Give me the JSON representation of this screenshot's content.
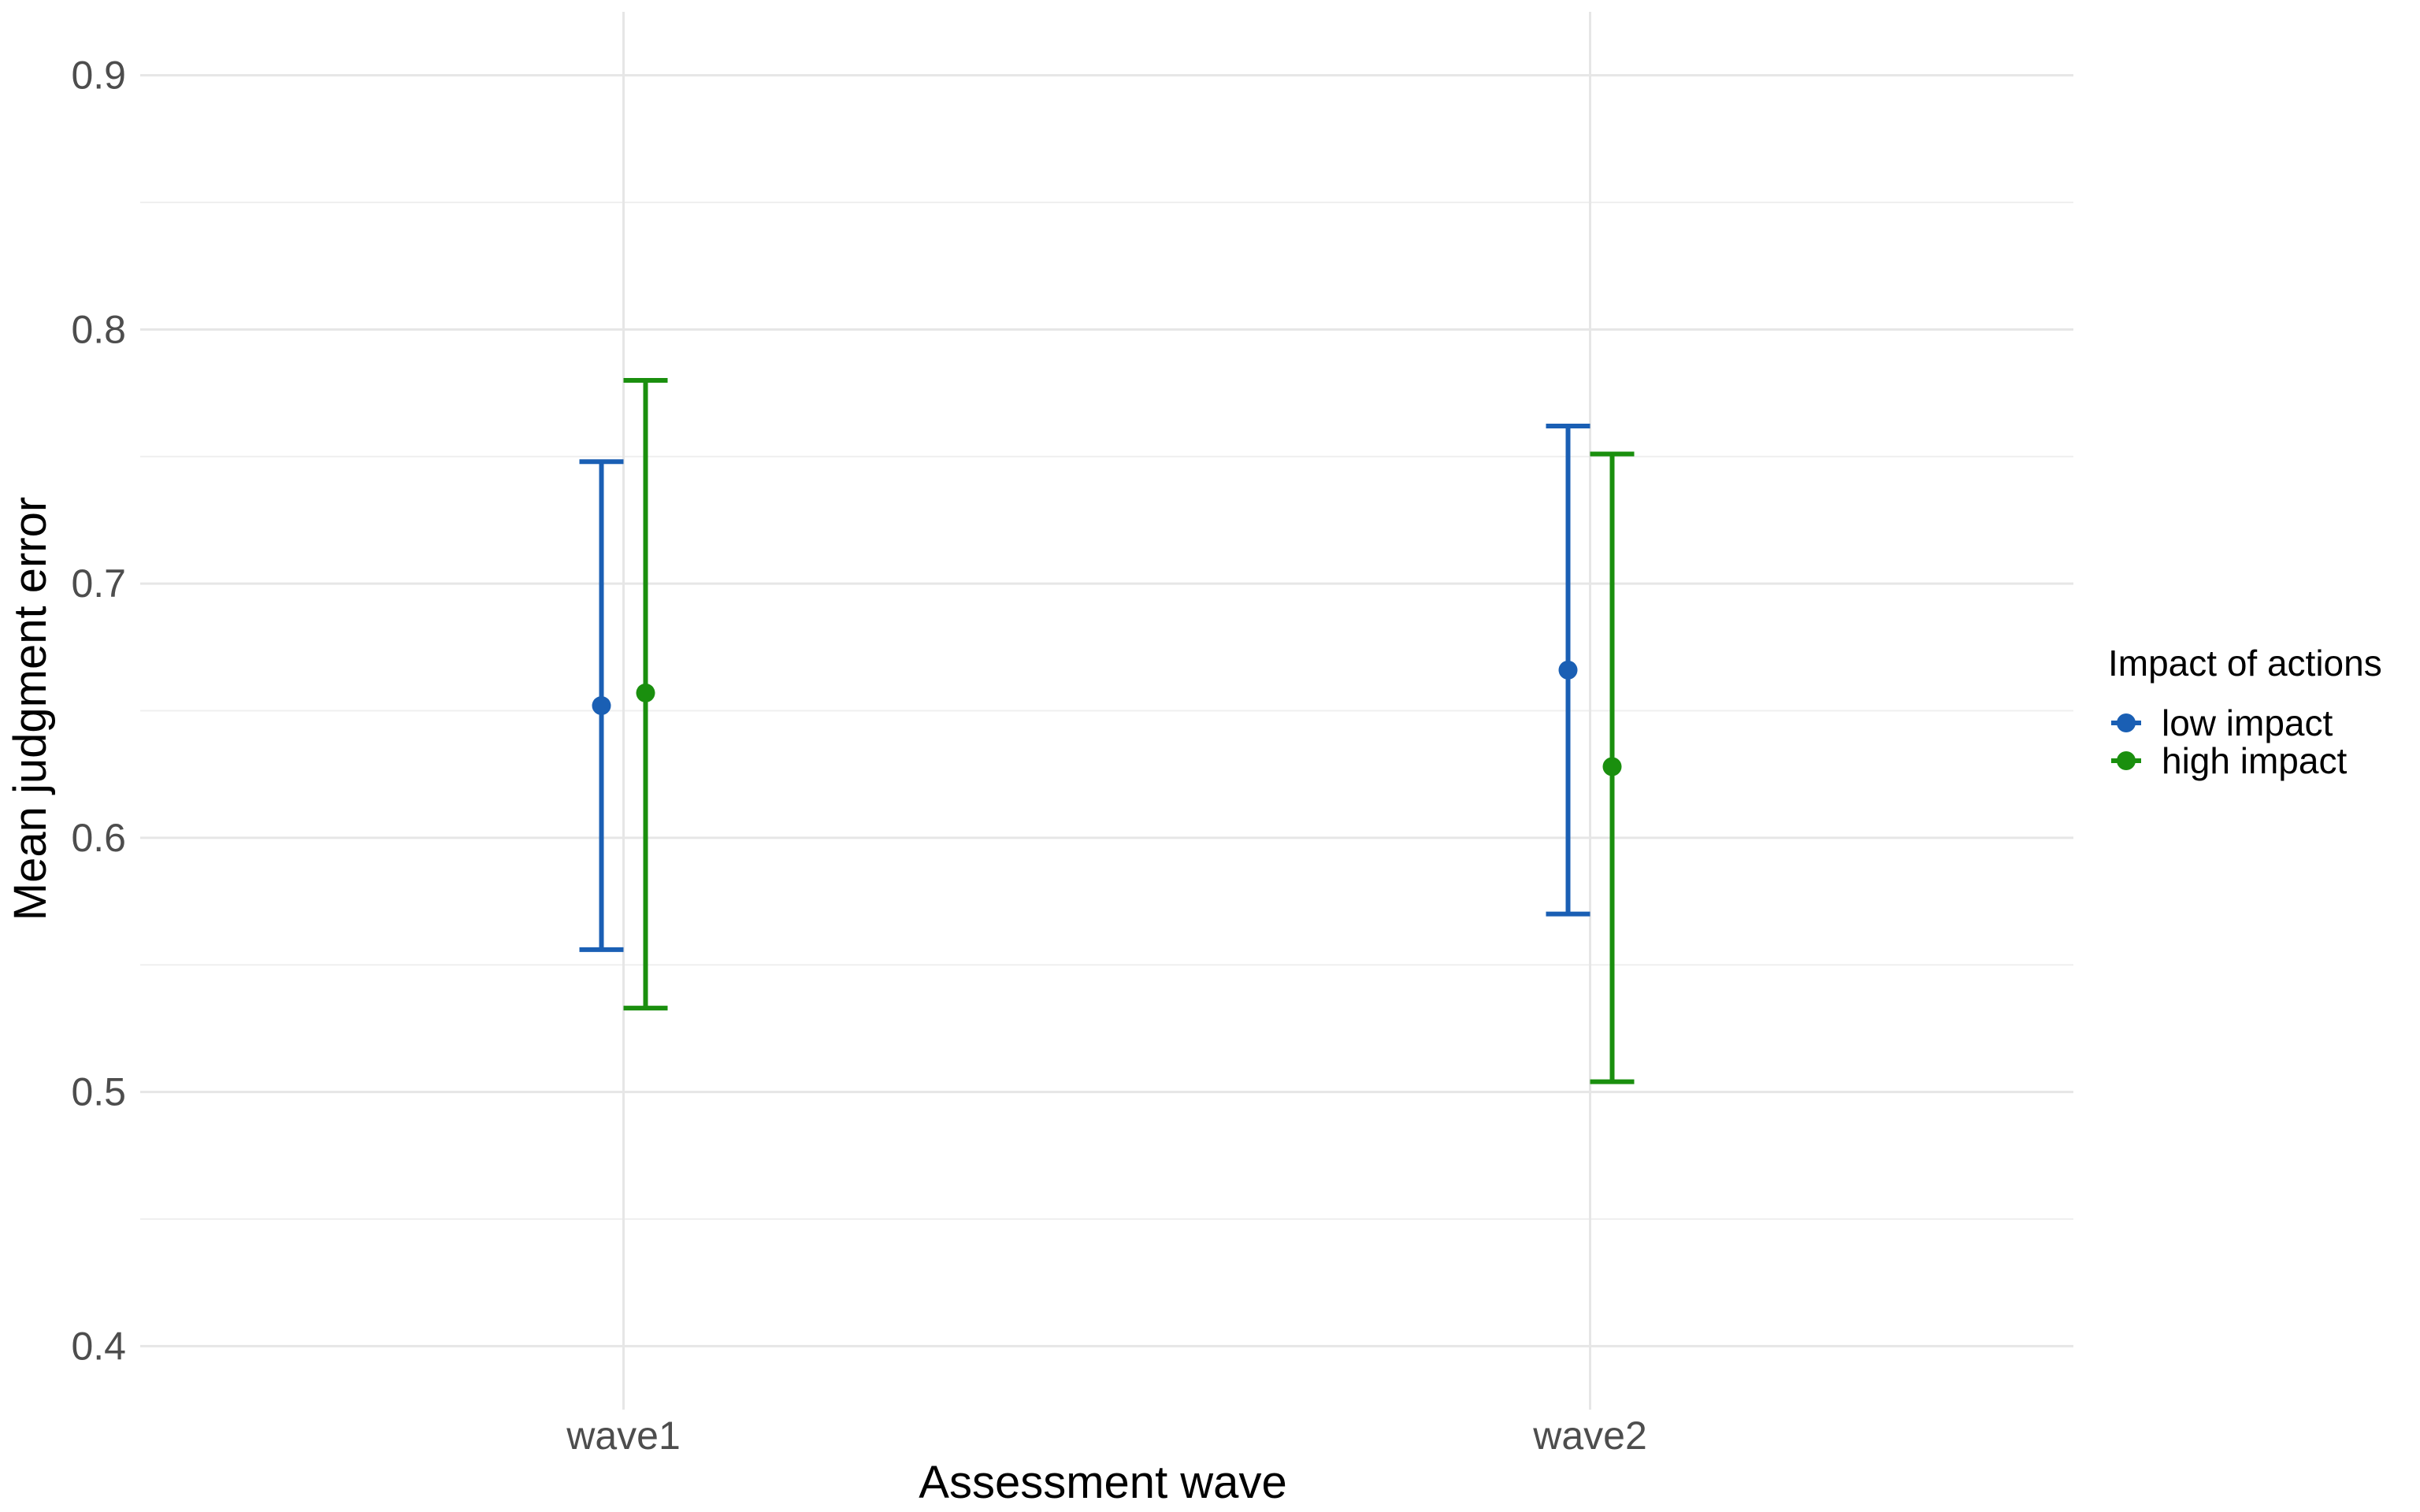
{
  "chart_data": {
    "type": "errorbar",
    "xlabel": "Assessment wave",
    "ylabel": "Mean judgment error",
    "categories": [
      "wave1",
      "wave2"
    ],
    "ylim": [
      0.375,
      0.925
    ],
    "yticks": [
      0.4,
      0.5,
      0.6,
      0.7,
      0.8,
      0.9
    ],
    "ytick_labels": [
      "0.4",
      "0.5",
      "0.6",
      "0.7",
      "0.8",
      "0.9"
    ],
    "grid": true,
    "legend": {
      "title": "Impact of actions",
      "position": "right"
    },
    "series": [
      {
        "name": "low impact",
        "color": "#1a5fb4",
        "values": [
          0.652,
          0.666
        ],
        "lower": [
          0.556,
          0.57
        ],
        "upper": [
          0.748,
          0.762
        ]
      },
      {
        "name": "high impact",
        "color": "#1a8f0e",
        "values": [
          0.657,
          0.628
        ],
        "lower": [
          0.533,
          0.504
        ],
        "upper": [
          0.78,
          0.751
        ]
      }
    ]
  }
}
